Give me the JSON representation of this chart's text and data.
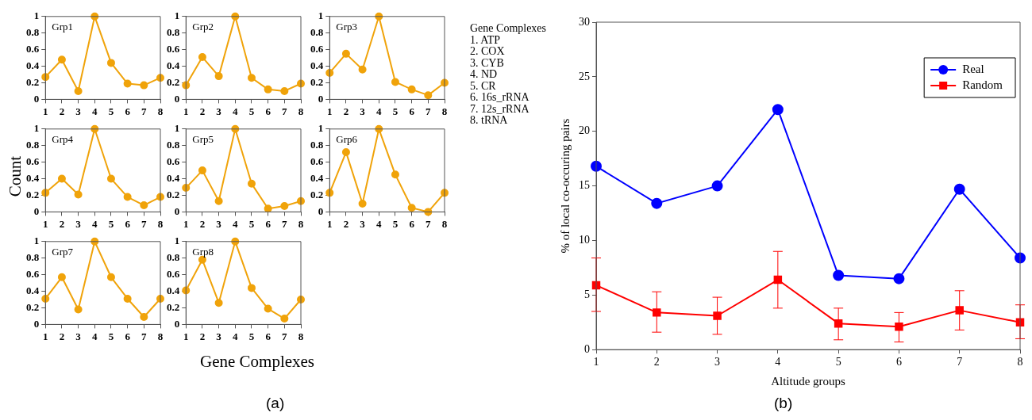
{
  "chart_data": [
    {
      "type": "line",
      "title": "Grp1",
      "x": [
        1,
        2,
        3,
        4,
        5,
        6,
        7,
        8
      ],
      "xlim": [
        1,
        8
      ],
      "xticks": [
        1,
        2,
        3,
        4,
        5,
        6,
        7,
        8
      ],
      "ylim": [
        0,
        1
      ],
      "yticks": [
        0,
        0.2,
        0.4,
        0.6,
        0.8,
        1
      ],
      "marker": "circle",
      "grid": false,
      "series": [
        {
          "color": "#f0a30a",
          "values": [
            0.27,
            0.48,
            0.1,
            1,
            0.44,
            0.19,
            0.17,
            0.26
          ]
        }
      ]
    },
    {
      "type": "line",
      "title": "Grp2",
      "x": [
        1,
        2,
        3,
        4,
        5,
        6,
        7,
        8
      ],
      "xlim": [
        1,
        8
      ],
      "xticks": [
        1,
        2,
        3,
        4,
        5,
        6,
        7,
        8
      ],
      "ylim": [
        0,
        1
      ],
      "yticks": [
        0,
        0.2,
        0.4,
        0.6,
        0.8,
        1
      ],
      "marker": "circle",
      "grid": false,
      "series": [
        {
          "color": "#f0a30a",
          "values": [
            0.17,
            0.51,
            0.28,
            1,
            0.26,
            0.12,
            0.1,
            0.19
          ]
        }
      ]
    },
    {
      "type": "line",
      "title": "Grp3",
      "x": [
        1,
        2,
        3,
        4,
        5,
        6,
        7,
        8
      ],
      "xlim": [
        1,
        8
      ],
      "xticks": [
        1,
        2,
        3,
        4,
        5,
        6,
        7,
        8
      ],
      "ylim": [
        0,
        1
      ],
      "yticks": [
        0,
        0.2,
        0.4,
        0.6,
        0.8,
        1
      ],
      "marker": "circle",
      "grid": false,
      "series": [
        {
          "color": "#f0a30a",
          "values": [
            0.32,
            0.55,
            0.36,
            1,
            0.21,
            0.12,
            0.05,
            0.2
          ]
        }
      ]
    },
    {
      "type": "other",
      "title": "Gene Complexes",
      "annotations": [
        "1. ATP",
        "2. COX",
        "3. CYB",
        "4. ND",
        "5. CR",
        "6. 16s_rRNA",
        "7. 12s_rRNA",
        "8. tRNA"
      ]
    },
    {
      "type": "line",
      "title": "Grp4",
      "ylabel": "Count",
      "x": [
        1,
        2,
        3,
        4,
        5,
        6,
        7,
        8
      ],
      "xlim": [
        1,
        8
      ],
      "xticks": [
        1,
        2,
        3,
        4,
        5,
        6,
        7,
        8
      ],
      "ylim": [
        0,
        1
      ],
      "yticks": [
        0,
        0.2,
        0.4,
        0.6,
        0.8,
        1
      ],
      "marker": "circle",
      "grid": false,
      "series": [
        {
          "color": "#f0a30a",
          "values": [
            0.23,
            0.4,
            0.21,
            1,
            0.4,
            0.18,
            0.08,
            0.18
          ]
        }
      ]
    },
    {
      "type": "line",
      "title": "Grp5",
      "x": [
        1,
        2,
        3,
        4,
        5,
        6,
        7,
        8
      ],
      "xlim": [
        1,
        8
      ],
      "xticks": [
        1,
        2,
        3,
        4,
        5,
        6,
        7,
        8
      ],
      "ylim": [
        0,
        1
      ],
      "yticks": [
        0,
        0.2,
        0.4,
        0.6,
        0.8,
        1
      ],
      "marker": "circle",
      "grid": false,
      "series": [
        {
          "color": "#f0a30a",
          "values": [
            0.29,
            0.5,
            0.13,
            1,
            0.34,
            0.04,
            0.07,
            0.13
          ]
        }
      ]
    },
    {
      "type": "line",
      "title": "Grp6",
      "x": [
        1,
        2,
        3,
        4,
        5,
        6,
        7,
        8
      ],
      "xlim": [
        1,
        8
      ],
      "xticks": [
        1,
        2,
        3,
        4,
        5,
        6,
        7,
        8
      ],
      "ylim": [
        0,
        1
      ],
      "yticks": [
        0,
        0.2,
        0.4,
        0.6,
        0.8,
        1
      ],
      "marker": "circle",
      "grid": false,
      "series": [
        {
          "color": "#f0a30a",
          "values": [
            0.23,
            0.72,
            0.1,
            1,
            0.45,
            0.05,
            0.0,
            0.23
          ]
        }
      ]
    },
    {
      "type": "line",
      "title": "Grp7",
      "x": [
        1,
        2,
        3,
        4,
        5,
        6,
        7,
        8
      ],
      "xlim": [
        1,
        8
      ],
      "xticks": [
        1,
        2,
        3,
        4,
        5,
        6,
        7,
        8
      ],
      "ylim": [
        0,
        1
      ],
      "yticks": [
        0,
        0.2,
        0.4,
        0.6,
        0.8,
        1
      ],
      "marker": "circle",
      "grid": false,
      "series": [
        {
          "color": "#f0a30a",
          "values": [
            0.31,
            0.57,
            0.18,
            1,
            0.57,
            0.31,
            0.09,
            0.31
          ]
        }
      ]
    },
    {
      "type": "line",
      "title": "Grp8",
      "xlabel": "Gene Complexes",
      "annotations": [
        "(a)"
      ],
      "x": [
        1,
        2,
        3,
        4,
        5,
        6,
        7,
        8
      ],
      "xlim": [
        1,
        8
      ],
      "xticks": [
        1,
        2,
        3,
        4,
        5,
        6,
        7,
        8
      ],
      "ylim": [
        0,
        1
      ],
      "yticks": [
        0,
        0.2,
        0.4,
        0.6,
        0.8,
        1
      ],
      "marker": "circle",
      "grid": false,
      "series": [
        {
          "color": "#f0a30a",
          "values": [
            0.41,
            0.78,
            0.26,
            1,
            0.44,
            0.19,
            0.07,
            0.3
          ]
        }
      ]
    },
    {
      "type": "line",
      "xlabel": "Altitude groups",
      "ylabel": "% of local co-occuring pairs",
      "annotations": [
        "(b)"
      ],
      "x": [
        1,
        2,
        3,
        4,
        5,
        6,
        7,
        8
      ],
      "xlim": [
        1,
        8
      ],
      "xticks": [
        1,
        2,
        3,
        4,
        5,
        6,
        7,
        8
      ],
      "ylim": [
        0,
        30
      ],
      "yticks": [
        0,
        5,
        10,
        15,
        20,
        25,
        30
      ],
      "grid": false,
      "legend": "top right",
      "series": [
        {
          "name": "Real",
          "color": "#0000ff",
          "marker": "circle",
          "values": [
            16.8,
            13.4,
            15.0,
            22.0,
            6.8,
            6.5,
            14.7,
            8.4
          ]
        },
        {
          "name": "Random",
          "color": "#ff0000",
          "marker": "square",
          "values": [
            5.9,
            3.4,
            3.1,
            6.4,
            2.4,
            2.1,
            3.6,
            2.5
          ],
          "errors": [
            [
              3.5,
              8.4
            ],
            [
              1.6,
              5.3
            ],
            [
              1.4,
              4.8
            ],
            [
              3.8,
              9.0
            ],
            [
              0.9,
              3.8
            ],
            [
              0.7,
              3.4
            ],
            [
              1.8,
              5.4
            ],
            [
              1.0,
              4.1
            ]
          ]
        }
      ]
    }
  ]
}
